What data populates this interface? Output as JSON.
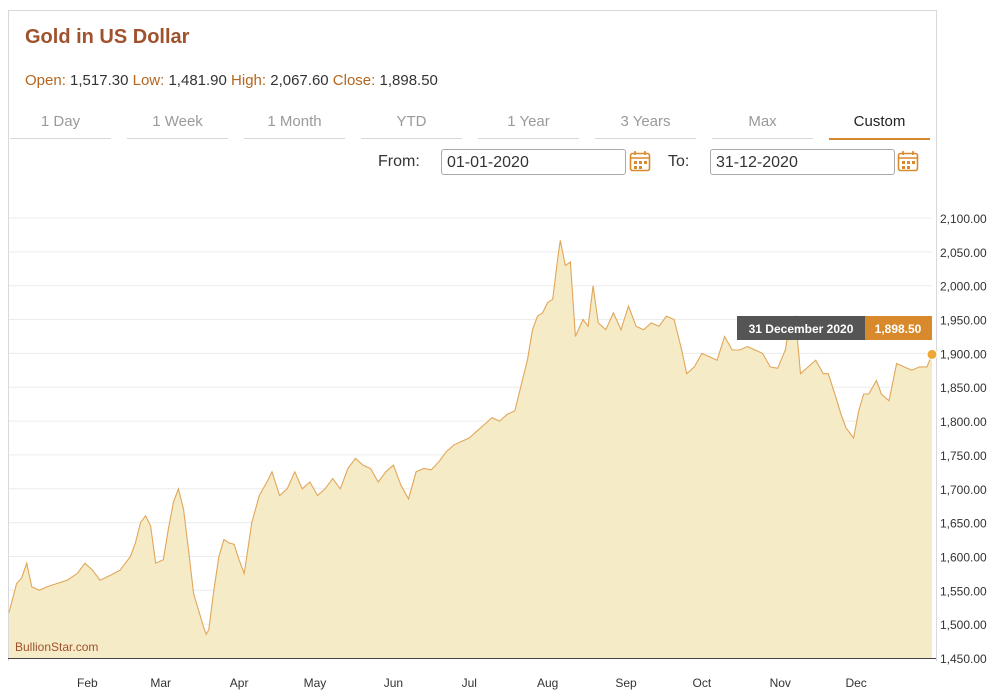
{
  "header": {
    "title": "Gold in US Dollar",
    "open_label": "Open:",
    "open": "1,517.30",
    "low_label": "Low:",
    "low": "1,481.90",
    "high_label": "High:",
    "high": "2,067.60",
    "close_label": "Close:",
    "close": "1,898.50"
  },
  "tabs": [
    "1 Day",
    "1 Week",
    "1 Month",
    "YTD",
    "1 Year",
    "3 Years",
    "Max",
    "Custom"
  ],
  "active_tab": "Custom",
  "range": {
    "from_label": "From:",
    "from": "01-01-2020",
    "to_label": "To:",
    "to": "31-12-2020"
  },
  "tooltip": {
    "date": "31 December 2020",
    "value": "1,898.50"
  },
  "watermark": "BullionStar.com",
  "colors": {
    "accent": "#d8892b",
    "title": "#a0522d",
    "area_fill": "#f5ebc6",
    "line": "#e2a65a"
  },
  "chart_data": {
    "type": "area",
    "ylim": [
      1450,
      2100
    ],
    "yticks": [
      "2,100.00",
      "2,050.00",
      "2,000.00",
      "1,950.00",
      "1,900.00",
      "1,850.00",
      "1,800.00",
      "1,750.00",
      "1,700.00",
      "1,650.00",
      "1,600.00",
      "1,550.00",
      "1,500.00",
      "1,450.00"
    ],
    "ytick_values": [
      2100,
      2050,
      2000,
      1950,
      1900,
      1850,
      1800,
      1750,
      1700,
      1650,
      1600,
      1550,
      1500,
      1450
    ],
    "xticks": [
      "Feb",
      "Mar",
      "Apr",
      "May",
      "Jun",
      "Jul",
      "Aug",
      "Sep",
      "Oct",
      "Nov",
      "Dec"
    ],
    "xtick_dates": [
      "2020-02-01",
      "2020-03-01",
      "2020-04-01",
      "2020-05-01",
      "2020-06-01",
      "2020-07-01",
      "2020-08-01",
      "2020-09-01",
      "2020-10-01",
      "2020-11-01",
      "2020-12-01"
    ],
    "x_start": "2020-01-01",
    "x_end": "2020-12-31",
    "grid": true,
    "points": [
      [
        "2020-01-01",
        1517
      ],
      [
        "2020-01-04",
        1560
      ],
      [
        "2020-01-06",
        1568
      ],
      [
        "2020-01-08",
        1590
      ],
      [
        "2020-01-10",
        1555
      ],
      [
        "2020-01-13",
        1550
      ],
      [
        "2020-01-16",
        1555
      ],
      [
        "2020-01-20",
        1560
      ],
      [
        "2020-01-24",
        1565
      ],
      [
        "2020-01-28",
        1575
      ],
      [
        "2020-01-31",
        1590
      ],
      [
        "2020-02-03",
        1580
      ],
      [
        "2020-02-06",
        1565
      ],
      [
        "2020-02-10",
        1572
      ],
      [
        "2020-02-14",
        1580
      ],
      [
        "2020-02-18",
        1600
      ],
      [
        "2020-02-20",
        1620
      ],
      [
        "2020-02-22",
        1650
      ],
      [
        "2020-02-24",
        1660
      ],
      [
        "2020-02-26",
        1645
      ],
      [
        "2020-02-28",
        1590
      ],
      [
        "2020-03-02",
        1595
      ],
      [
        "2020-03-04",
        1640
      ],
      [
        "2020-03-06",
        1680
      ],
      [
        "2020-03-08",
        1700
      ],
      [
        "2020-03-10",
        1670
      ],
      [
        "2020-03-12",
        1610
      ],
      [
        "2020-03-14",
        1545
      ],
      [
        "2020-03-16",
        1520
      ],
      [
        "2020-03-18",
        1495
      ],
      [
        "2020-03-19",
        1485
      ],
      [
        "2020-03-20",
        1492
      ],
      [
        "2020-03-22",
        1550
      ],
      [
        "2020-03-24",
        1600
      ],
      [
        "2020-03-26",
        1625
      ],
      [
        "2020-03-28",
        1620
      ],
      [
        "2020-03-30",
        1618
      ],
      [
        "2020-04-01",
        1595
      ],
      [
        "2020-04-03",
        1575
      ],
      [
        "2020-04-06",
        1650
      ],
      [
        "2020-04-09",
        1690
      ],
      [
        "2020-04-12",
        1710
      ],
      [
        "2020-04-14",
        1725
      ],
      [
        "2020-04-17",
        1690
      ],
      [
        "2020-04-20",
        1700
      ],
      [
        "2020-04-23",
        1725
      ],
      [
        "2020-04-26",
        1700
      ],
      [
        "2020-04-29",
        1710
      ],
      [
        "2020-05-02",
        1690
      ],
      [
        "2020-05-05",
        1700
      ],
      [
        "2020-05-08",
        1715
      ],
      [
        "2020-05-11",
        1700
      ],
      [
        "2020-05-14",
        1730
      ],
      [
        "2020-05-17",
        1745
      ],
      [
        "2020-05-20",
        1735
      ],
      [
        "2020-05-23",
        1730
      ],
      [
        "2020-05-26",
        1710
      ],
      [
        "2020-05-29",
        1725
      ],
      [
        "2020-06-01",
        1735
      ],
      [
        "2020-06-04",
        1705
      ],
      [
        "2020-06-07",
        1685
      ],
      [
        "2020-06-10",
        1725
      ],
      [
        "2020-06-13",
        1730
      ],
      [
        "2020-06-16",
        1728
      ],
      [
        "2020-06-19",
        1740
      ],
      [
        "2020-06-22",
        1755
      ],
      [
        "2020-06-25",
        1765
      ],
      [
        "2020-06-28",
        1770
      ],
      [
        "2020-07-01",
        1775
      ],
      [
        "2020-07-04",
        1785
      ],
      [
        "2020-07-07",
        1795
      ],
      [
        "2020-07-10",
        1805
      ],
      [
        "2020-07-13",
        1800
      ],
      [
        "2020-07-16",
        1810
      ],
      [
        "2020-07-19",
        1815
      ],
      [
        "2020-07-22",
        1860
      ],
      [
        "2020-07-24",
        1890
      ],
      [
        "2020-07-26",
        1935
      ],
      [
        "2020-07-28",
        1955
      ],
      [
        "2020-07-30",
        1960
      ],
      [
        "2020-08-01",
        1975
      ],
      [
        "2020-08-03",
        1980
      ],
      [
        "2020-08-05",
        2040
      ],
      [
        "2020-08-06",
        2067
      ],
      [
        "2020-08-08",
        2030
      ],
      [
        "2020-08-10",
        2035
      ],
      [
        "2020-08-11",
        1980
      ],
      [
        "2020-08-12",
        1925
      ],
      [
        "2020-08-15",
        1950
      ],
      [
        "2020-08-17",
        1940
      ],
      [
        "2020-08-19",
        2000
      ],
      [
        "2020-08-21",
        1945
      ],
      [
        "2020-08-24",
        1935
      ],
      [
        "2020-08-27",
        1960
      ],
      [
        "2020-08-30",
        1935
      ],
      [
        "2020-09-02",
        1970
      ],
      [
        "2020-09-05",
        1940
      ],
      [
        "2020-09-08",
        1935
      ],
      [
        "2020-09-11",
        1945
      ],
      [
        "2020-09-14",
        1940
      ],
      [
        "2020-09-17",
        1955
      ],
      [
        "2020-09-20",
        1950
      ],
      [
        "2020-09-23",
        1905
      ],
      [
        "2020-09-25",
        1870
      ],
      [
        "2020-09-28",
        1880
      ],
      [
        "2020-10-01",
        1900
      ],
      [
        "2020-10-04",
        1895
      ],
      [
        "2020-10-07",
        1890
      ],
      [
        "2020-10-10",
        1925
      ],
      [
        "2020-10-13",
        1905
      ],
      [
        "2020-10-16",
        1905
      ],
      [
        "2020-10-19",
        1910
      ],
      [
        "2020-10-22",
        1905
      ],
      [
        "2020-10-25",
        1900
      ],
      [
        "2020-10-28",
        1880
      ],
      [
        "2020-10-31",
        1878
      ],
      [
        "2020-11-03",
        1905
      ],
      [
        "2020-11-05",
        1950
      ],
      [
        "2020-11-07",
        1955
      ],
      [
        "2020-11-09",
        1870
      ],
      [
        "2020-11-12",
        1880
      ],
      [
        "2020-11-15",
        1890
      ],
      [
        "2020-11-18",
        1870
      ],
      [
        "2020-11-20",
        1870
      ],
      [
        "2020-11-23",
        1835
      ],
      [
        "2020-11-25",
        1810
      ],
      [
        "2020-11-27",
        1790
      ],
      [
        "2020-11-30",
        1775
      ],
      [
        "2020-12-02",
        1815
      ],
      [
        "2020-12-04",
        1840
      ],
      [
        "2020-12-06",
        1840
      ],
      [
        "2020-12-09",
        1860
      ],
      [
        "2020-12-11",
        1840
      ],
      [
        "2020-12-14",
        1830
      ],
      [
        "2020-12-17",
        1885
      ],
      [
        "2020-12-20",
        1880
      ],
      [
        "2020-12-23",
        1875
      ],
      [
        "2020-12-26",
        1880
      ],
      [
        "2020-12-29",
        1880
      ],
      [
        "2020-12-31",
        1898.5
      ]
    ]
  }
}
